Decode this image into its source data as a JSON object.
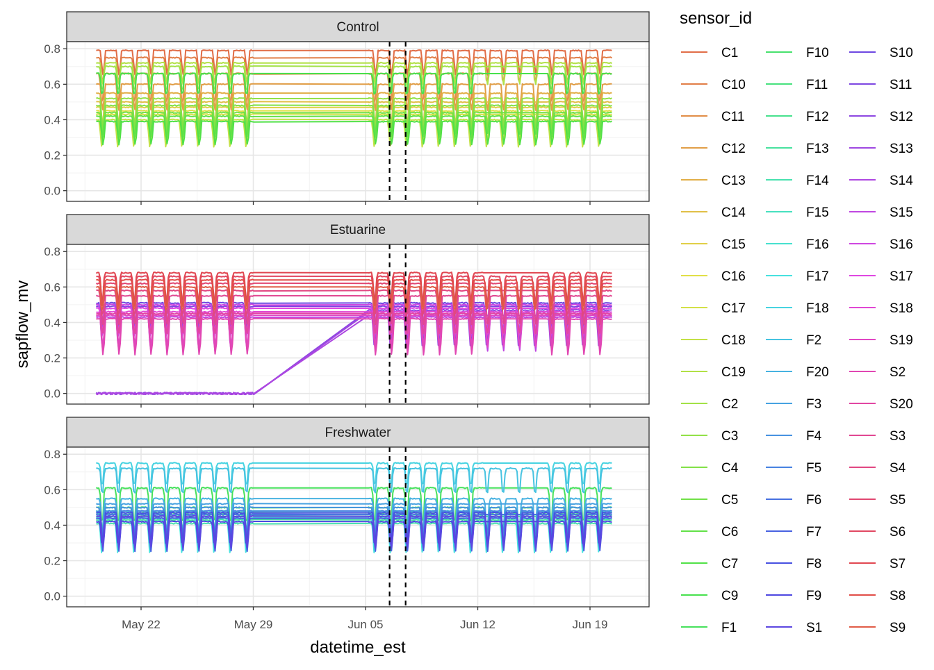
{
  "chart_data": {
    "type": "line",
    "facets": [
      "Control",
      "Estuarine",
      "Freshwater"
    ],
    "xlabel": "datetime_est",
    "ylabel": "sapflow_mv",
    "x_range": [
      "2024-05-18",
      "2024-06-20"
    ],
    "x_ticks": [
      "May 22",
      "May 29",
      "Jun 05",
      "Jun 12",
      "Jun 19"
    ],
    "ylim": [
      -0.06,
      0.84
    ],
    "y_ticks": [
      "0.0",
      "0.2",
      "0.4",
      "0.6",
      "0.8"
    ],
    "grid": true,
    "data_gap": [
      "2024-05-29",
      "2024-06-05"
    ],
    "vlines": [
      "2024-06-06",
      "2024-06-07"
    ],
    "vline_style": "dashed",
    "legend": {
      "title": "sensor_id",
      "position": "right",
      "entries": [
        "C1",
        "C10",
        "C11",
        "C12",
        "C13",
        "C14",
        "C15",
        "C16",
        "C17",
        "C18",
        "C19",
        "C2",
        "C3",
        "C4",
        "C5",
        "C6",
        "C7",
        "C9",
        "F1",
        "F10",
        "F11",
        "F12",
        "F13",
        "F14",
        "F15",
        "F16",
        "F17",
        "F18",
        "F2",
        "F20",
        "F3",
        "F4",
        "F5",
        "F6",
        "F7",
        "F8",
        "F9",
        "S1",
        "S10",
        "S11",
        "S12",
        "S13",
        "S14",
        "S15",
        "S16",
        "S17",
        "S18",
        "S19",
        "S2",
        "S20",
        "S3",
        "S4",
        "S5",
        "S6",
        "S7",
        "S8",
        "S9"
      ]
    },
    "series_levels": {
      "Control": {
        "C1": 0.79,
        "C10": 0.75,
        "C11": 0.66,
        "C12": 0.6,
        "C13": 0.55,
        "C14": 0.5,
        "C15": 0.47,
        "C16": 0.45,
        "C17": 0.43,
        "C18": 0.4,
        "C19": 0.72,
        "C2": 0.7,
        "C3": 0.52,
        "C4": 0.48,
        "C5": 0.44,
        "C6": 0.42,
        "C7": 0.39,
        "C9": 0.66
      },
      "Estuarine": {
        "S10": 0.51,
        "S11": 0.49,
        "S12": 0.47,
        "S13": 0.46,
        "S14": 0.44,
        "S15": 0.43,
        "S16": 0.5,
        "S17": 0.48,
        "S18": 0.46,
        "S19": 0.44,
        "S2": 0.42,
        "S20": 0.45,
        "S3": 0.55,
        "S4": 0.58,
        "S5": 0.62,
        "S6": 0.66,
        "S7": 0.68,
        "S8": 0.64,
        "S9": 0.6
      },
      "Freshwater": {
        "F1": 0.61,
        "F10": 0.5,
        "F11": 0.47,
        "F12": 0.45,
        "F13": 0.43,
        "F14": 0.41,
        "F15": 0.46,
        "F16": 0.48,
        "F17": 0.44,
        "F18": 0.75,
        "F2": 0.72,
        "F20": 0.55,
        "F3": 0.52,
        "F4": 0.5,
        "F5": 0.48,
        "F6": 0.46,
        "F7": 0.44,
        "F8": 0.47,
        "F9": 0.42,
        "S1": 0.45
      }
    },
    "estuarine_near_zero_series": [
      "S12",
      "S13",
      "S14"
    ],
    "daily_dip_depth": 0.17
  }
}
